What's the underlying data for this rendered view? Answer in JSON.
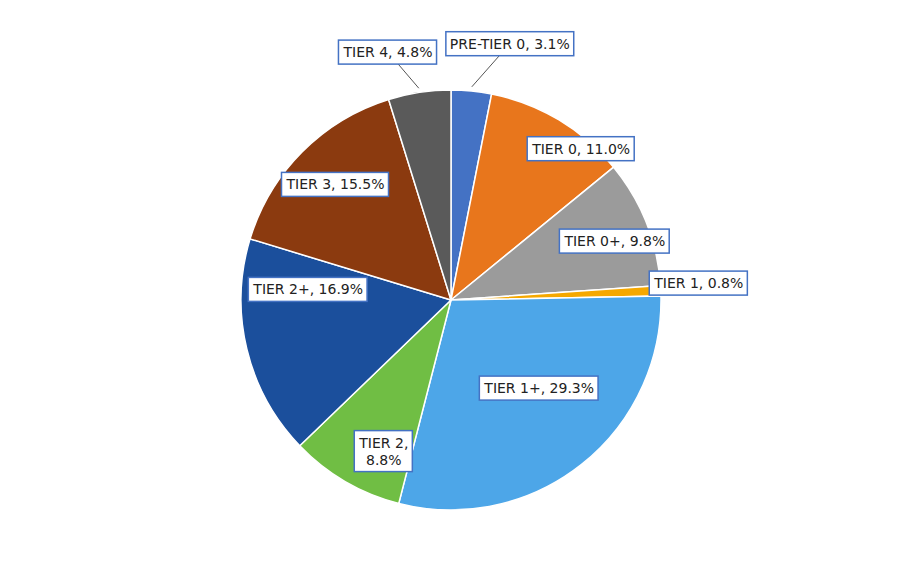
{
  "chart_data": {
    "type": "pie",
    "values": [
      3.1,
      11.0,
      9.8,
      0.8,
      29.3,
      8.8,
      16.9,
      15.5,
      4.8
    ],
    "value_labels": [
      "PRE-TIER 0, 3.1%",
      "TIER 0, 11.0%",
      "TIER 0+, 9.8%",
      "TIER 1, 0.8%",
      "TIER 1+, 29.3%",
      "TIER 2,\n8.8%",
      "TIER 2+, 16.9%",
      "TIER 3, 15.5%",
      "TIER 4, 4.8%"
    ],
    "colors": [
      "#4472C4",
      "#E8761C",
      "#9B9B9B",
      "#F5A800",
      "#4DA6E8",
      "#70BE44",
      "#1B4F9C",
      "#8B3A0F",
      "#5A5A5A"
    ],
    "data_labels": true
  }
}
